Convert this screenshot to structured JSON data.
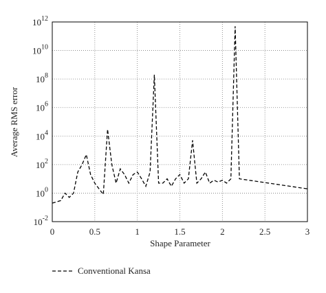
{
  "chart_data": {
    "type": "line",
    "x_label": "Shape Parameter",
    "y_label": "Average RMS error",
    "x": [
      0,
      0.1,
      0.15,
      0.2,
      0.25,
      0.3,
      0.35,
      0.4,
      0.45,
      0.5,
      0.55,
      0.6,
      0.65,
      0.7,
      0.75,
      0.8,
      0.85,
      0.9,
      0.95,
      1.0,
      1.05,
      1.1,
      1.15,
      1.2,
      1.25,
      1.3,
      1.35,
      1.4,
      1.45,
      1.5,
      1.55,
      1.6,
      1.65,
      1.7,
      1.75,
      1.8,
      1.85,
      1.9,
      1.95,
      2.0,
      2.05,
      2.1,
      2.15,
      2.2,
      3.0
    ],
    "series": [
      {
        "name": "Conventional Kansa",
        "color": "#000000",
        "dash": "5,3",
        "values": [
          0.2,
          0.3,
          1,
          0.5,
          1,
          30,
          100,
          500,
          20,
          5,
          2,
          0.8,
          30000,
          100,
          5,
          50,
          20,
          5,
          20,
          30,
          10,
          3,
          30,
          200000000,
          5,
          5,
          10,
          3,
          10,
          20,
          5,
          10,
          5000,
          5,
          10,
          30,
          5,
          8,
          6,
          8,
          5,
          10,
          500000000000,
          10,
          2
        ]
      }
    ],
    "xlim": [
      0,
      3
    ],
    "xticks": [
      0,
      0.5,
      1,
      1.5,
      2,
      2.5,
      3
    ],
    "ylim": [
      0.01,
      1000000000000
    ],
    "log_y": true,
    "yticks": [
      {
        "value": 0.01,
        "label": "10^-2"
      },
      {
        "value": 1,
        "label": "10^0"
      },
      {
        "value": 100,
        "label": "10^2"
      },
      {
        "value": 10000,
        "label": "10^4"
      },
      {
        "value": 1000000,
        "label": "10^6"
      },
      {
        "value": 100000000,
        "label": "10^8"
      },
      {
        "value": 10000000000,
        "label": "10^10"
      },
      {
        "value": 1000000000000,
        "label": "10^12"
      }
    ],
    "grid": true,
    "legend": "bottom"
  }
}
